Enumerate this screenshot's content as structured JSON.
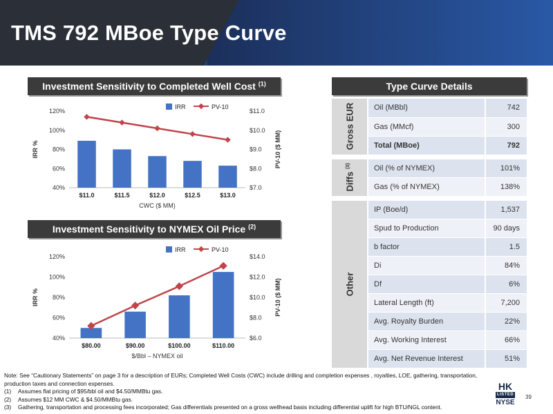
{
  "header": {
    "title": "TMS 792 MBoe Type Curve"
  },
  "sections": {
    "wellcost_title": "Investment Sensitivity to Completed Well Cost",
    "wellcost_sup": "(1)",
    "oil_title": "Investment Sensitivity to NYMEX Oil Price",
    "oil_sup": "(2)",
    "details_title": "Type Curve Details"
  },
  "chart_data": [
    {
      "type": "bar+line",
      "title": "Investment Sensitivity to Completed Well Cost (1)",
      "categories": [
        "$11.0",
        "$11.5",
        "$12.0",
        "$12.5",
        "$13.0"
      ],
      "xlabel": "CWC ($ MM)",
      "ylabel": "IRR %",
      "y2label": "PV-10 ($ MM)",
      "ylim": [
        0.4,
        1.2
      ],
      "yticks": [
        "40%",
        "60%",
        "80%",
        "100%",
        "120%"
      ],
      "y2lim": [
        7.0,
        11.0
      ],
      "y2ticks": [
        "$7.0",
        "$8.0",
        "$9.0",
        "$10.0",
        "$11.0"
      ],
      "legend_position": "top",
      "series": [
        {
          "name": "IRR",
          "type": "bar",
          "axis": "left",
          "values": [
            0.89,
            0.8,
            0.73,
            0.68,
            0.63
          ]
        },
        {
          "name": "PV-10",
          "type": "line",
          "axis": "right",
          "values": [
            10.7,
            10.4,
            10.1,
            9.8,
            9.5
          ]
        }
      ],
      "colors": {
        "bar": "#4472c4",
        "line": "#c0444a"
      }
    },
    {
      "type": "bar+line",
      "title": "Investment Sensitivity to NYMEX Oil Price (2)",
      "categories": [
        "$80.00",
        "$90.00",
        "$100.00",
        "$110.00"
      ],
      "xlabel": "$/Bbl – NYMEX oil",
      "ylabel": "IRR %",
      "y2label": "PV-10 ($ MM)",
      "ylim": [
        0.4,
        1.2
      ],
      "yticks": [
        "40%",
        "60%",
        "80%",
        "100%",
        "120%"
      ],
      "y2lim": [
        6.0,
        14.0
      ],
      "y2ticks": [
        "$6.0",
        "$8.0",
        "$10.0",
        "$12.0",
        "$14.0"
      ],
      "legend_position": "top",
      "series": [
        {
          "name": "IRR",
          "type": "bar",
          "axis": "left",
          "values": [
            0.5,
            0.66,
            0.82,
            1.05
          ]
        },
        {
          "name": "PV-10",
          "type": "line",
          "axis": "right",
          "values": [
            7.2,
            9.2,
            11.1,
            13.1
          ]
        }
      ],
      "colors": {
        "bar": "#4472c4",
        "line": "#c0444a"
      }
    }
  ],
  "details": {
    "groups": [
      {
        "name": "Gross EUR",
        "sup": "",
        "rows": [
          {
            "label": "Oil (MBbl)",
            "value": "742",
            "bold": false
          },
          {
            "label": "Gas (MMcf)",
            "value": "300",
            "bold": false
          },
          {
            "label": "Total (MBoe)",
            "value": "792",
            "bold": true
          }
        ]
      },
      {
        "name": "Diffs",
        "sup": "(3)",
        "rows": [
          {
            "label": "Oil (% of NYMEX)",
            "value": "101%",
            "bold": false
          },
          {
            "label": "Gas (% of NYMEX)",
            "value": "138%",
            "bold": false
          }
        ]
      },
      {
        "name": "Other",
        "sup": "",
        "rows": [
          {
            "label": "IP (Boe/d)",
            "value": "1,537",
            "bold": false
          },
          {
            "label": "Spud to Production",
            "value": "90 days",
            "bold": false
          },
          {
            "label": "b factor",
            "value": "1.5",
            "bold": false
          },
          {
            "label": "Di",
            "value": "84%",
            "bold": false
          },
          {
            "label": "Df",
            "value": "6%",
            "bold": false
          },
          {
            "label": "Lateral Length (ft)",
            "value": "7,200",
            "bold": false
          },
          {
            "label": "Avg. Royalty Burden",
            "value": "22%",
            "bold": false
          },
          {
            "label": "Avg. Working Interest",
            "value": "66%",
            "bold": false
          },
          {
            "label": "Avg. Net Revenue Interest",
            "value": "51%",
            "bold": false
          }
        ]
      }
    ]
  },
  "notes": {
    "main": "Note: See “Cautionary Statements” on page 3 for a description of EURs; Completed Well Costs (CWC) include drilling and completion expenses , royalties, LOE, gathering, transportation, production taxes and connection expenses.",
    "items": [
      {
        "key": "(1)",
        "text": "Assumes flat pricing of $95/bbl oil and $4.50/MMBtu gas."
      },
      {
        "key": "(2)",
        "text": "Assumes $12 MM CWC & $4.50/MMBtu gas."
      },
      {
        "key": "(3)",
        "text": "Gathering, transportation and processing fees incorporated; Gas differentials presented on a gross wellhead basis including differential uplift for high BTU/NGL content."
      }
    ]
  },
  "footer": {
    "page": "39",
    "logo_hk": "HK",
    "logo_listed": "LISTED",
    "logo_nyse": "NYSE"
  }
}
